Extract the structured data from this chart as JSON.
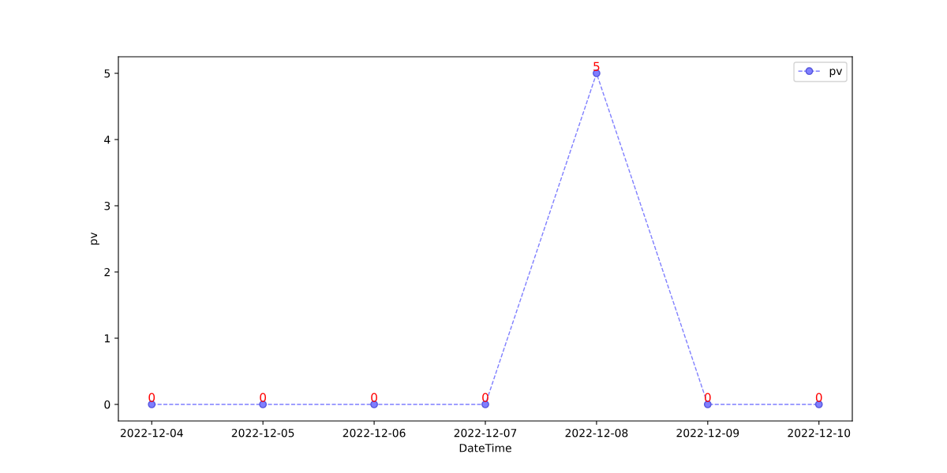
{
  "chart_data": {
    "type": "line",
    "xlabel": "DateTime",
    "ylabel": "pv",
    "categories": [
      "2022-12-04",
      "2022-12-05",
      "2022-12-06",
      "2022-12-07",
      "2022-12-08",
      "2022-12-09",
      "2022-12-10"
    ],
    "series": [
      {
        "name": "pv",
        "color": "#7f7fff",
        "values": [
          0,
          0,
          0,
          0,
          5,
          0,
          0
        ]
      }
    ],
    "ylim": [
      -0.25,
      5.25
    ],
    "yticks": [
      0,
      1,
      2,
      3,
      4,
      5
    ],
    "marker": "circle",
    "line_style": "dashed",
    "data_labels": true,
    "legend": "top right",
    "grid": false
  }
}
